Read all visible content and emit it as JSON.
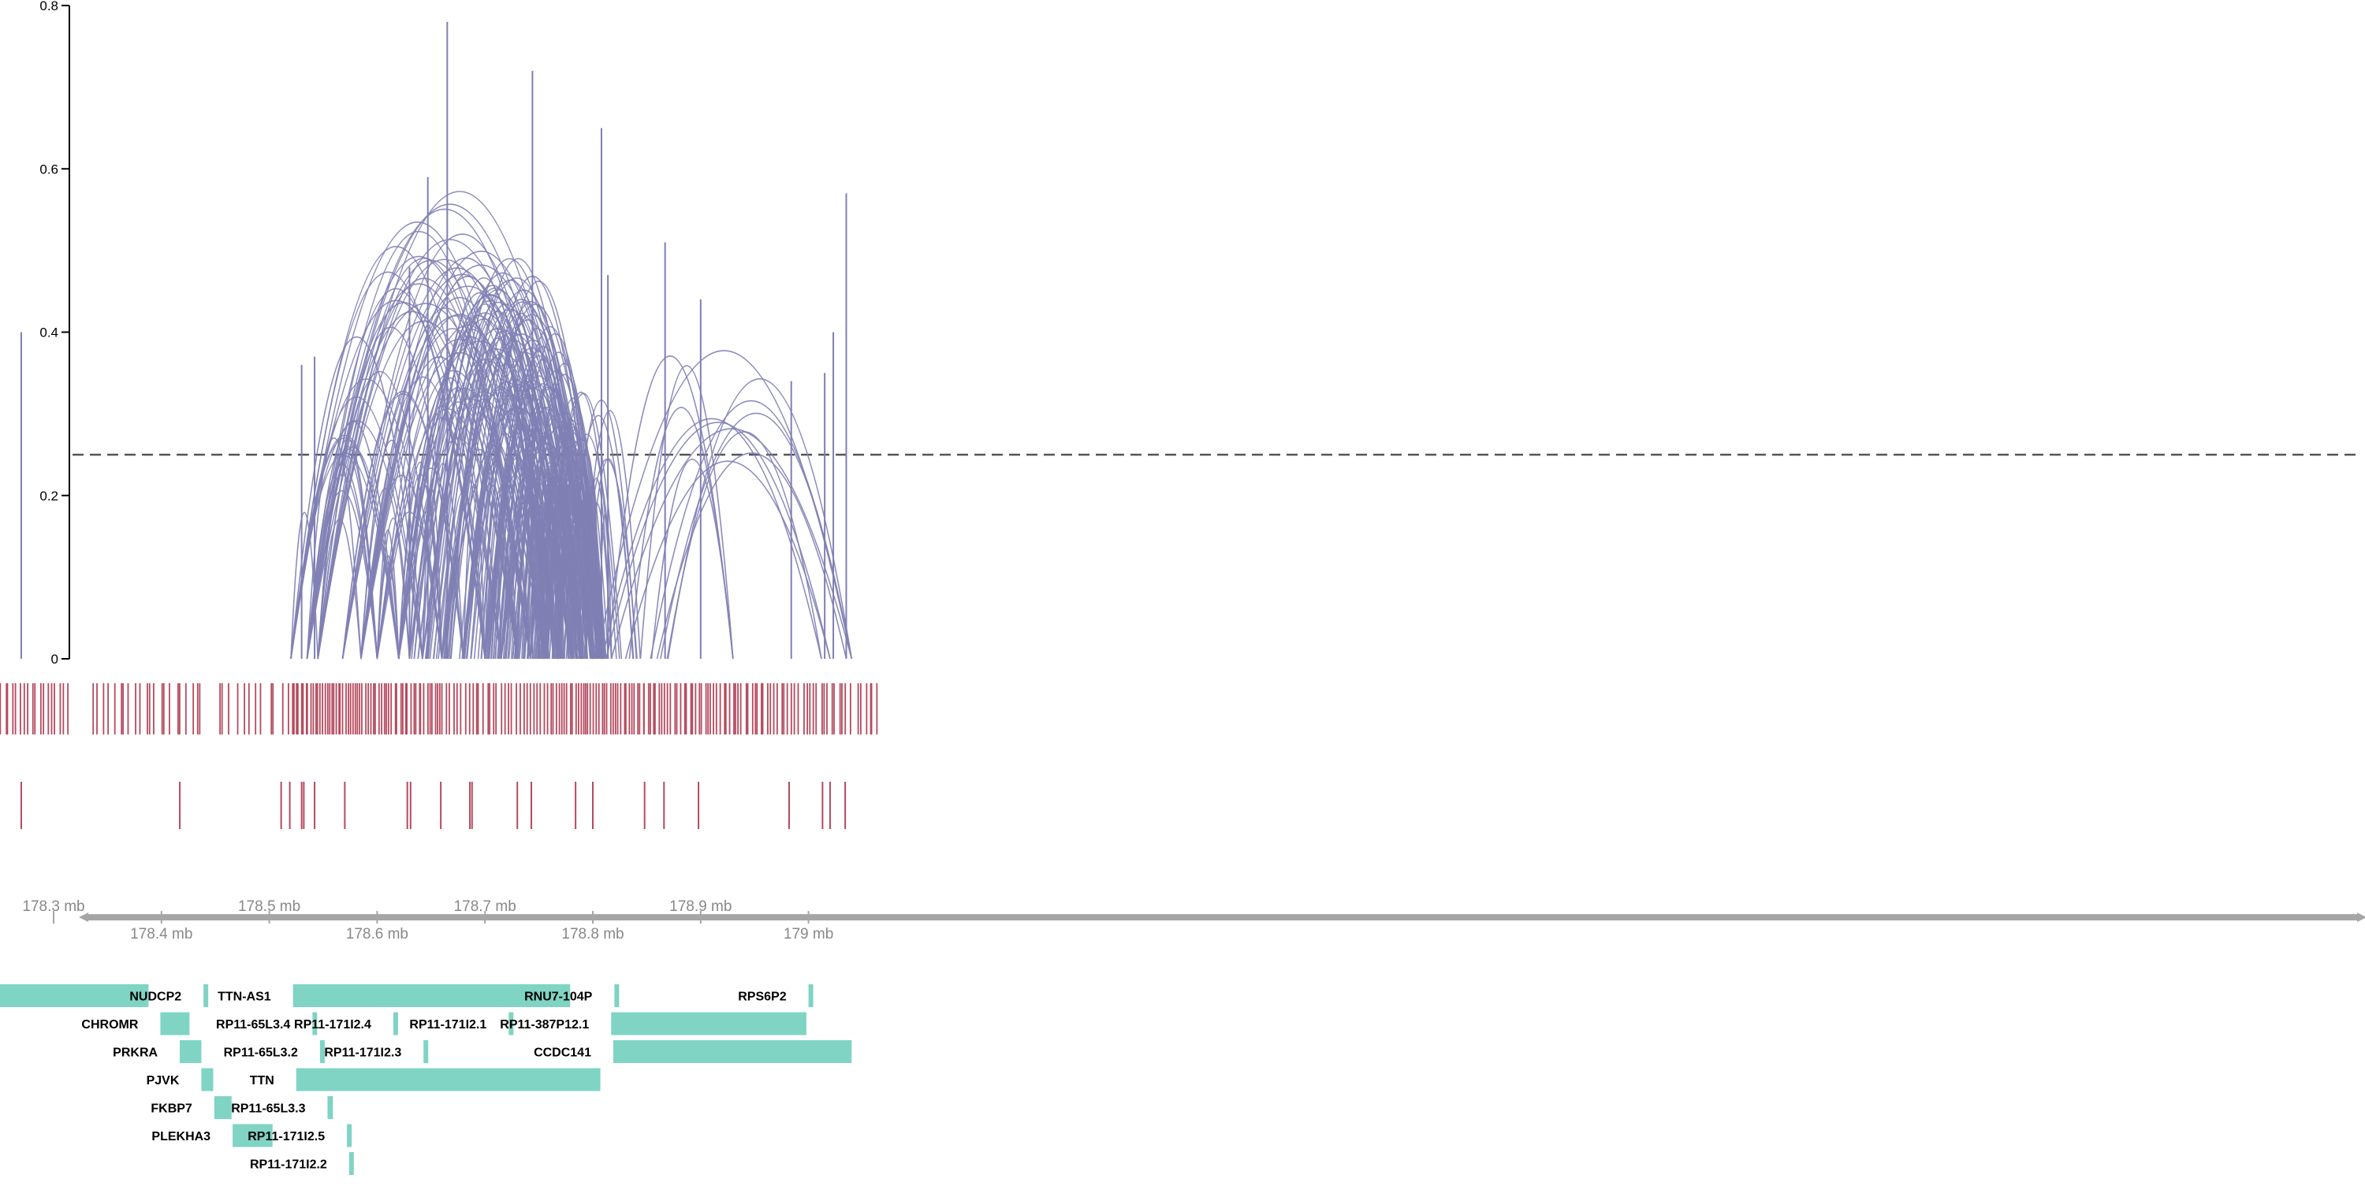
{
  "chart_data": {
    "type": "genome-track-arcs",
    "ylim": [
      0,
      0.8
    ],
    "yticks": [
      {
        "value": 0,
        "label": "0"
      },
      {
        "value": 0.2,
        "label": "0.2"
      },
      {
        "value": 0.4,
        "label": "0.4"
      },
      {
        "value": 0.6,
        "label": "0.6"
      },
      {
        "value": 0.8,
        "label": "0.8"
      }
    ],
    "threshold": 0.25,
    "xlim_mb": [
      178.23,
      179.07
    ],
    "colors": {
      "arcs": "#7f7fb4",
      "variants": "#b54a5e",
      "genes": "#7fd4c4",
      "axis": "#a6a6a6",
      "axis_text": "#888888",
      "threshold": "#555555"
    },
    "axis_ticks_upper": [
      "178.3 mb",
      "178.5 mb",
      "178.7 mb",
      "178.9 mb"
    ],
    "axis_ticks_lower": [
      "178.4 mb",
      "178.6 mb",
      "178.8 mb",
      "179 mb"
    ],
    "axis_tick_values_upper": [
      178.3,
      178.5,
      178.7,
      178.9
    ],
    "axis_tick_values_lower": [
      178.4,
      178.6,
      178.8,
      179.0
    ],
    "spikes": [
      {
        "x": 178.27,
        "h": 0.4
      },
      {
        "x": 178.53,
        "h": 0.36
      },
      {
        "x": 178.542,
        "h": 0.37
      },
      {
        "x": 178.63,
        "h": 0.48
      },
      {
        "x": 178.647,
        "h": 0.59
      },
      {
        "x": 178.665,
        "h": 0.78
      },
      {
        "x": 178.744,
        "h": 0.72
      },
      {
        "x": 178.808,
        "h": 0.65
      },
      {
        "x": 178.814,
        "h": 0.47
      },
      {
        "x": 178.867,
        "h": 0.51
      },
      {
        "x": 178.9,
        "h": 0.44
      },
      {
        "x": 178.984,
        "h": 0.34
      },
      {
        "x": 179.015,
        "h": 0.35
      },
      {
        "x": 179.023,
        "h": 0.4
      },
      {
        "x": 179.035,
        "h": 0.57
      }
    ],
    "variant_density": [
      {
        "from": 178.235,
        "to": 178.315,
        "n": 22
      },
      {
        "from": 178.335,
        "to": 178.44,
        "n": 22
      },
      {
        "from": 178.45,
        "to": 178.52,
        "n": 12
      },
      {
        "from": 178.52,
        "to": 178.585,
        "n": 30
      },
      {
        "from": 178.585,
        "to": 178.66,
        "n": 30
      },
      {
        "from": 178.66,
        "to": 178.76,
        "n": 30
      },
      {
        "from": 178.76,
        "to": 178.86,
        "n": 40
      },
      {
        "from": 178.86,
        "to": 178.96,
        "n": 35
      },
      {
        "from": 178.96,
        "to": 179.04,
        "n": 24
      },
      {
        "from": 179.045,
        "to": 179.065,
        "n": 6
      }
    ],
    "sparse_variants": [
      178.24,
      178.27,
      178.417,
      178.511,
      178.519,
      178.53,
      178.532,
      178.542,
      178.57,
      178.628,
      178.631,
      178.659,
      178.686,
      178.688,
      178.73,
      178.743,
      178.784,
      178.8,
      178.848,
      178.866,
      178.898,
      178.982,
      179.013,
      179.02,
      179.034
    ],
    "genes": [
      {
        "label": "",
        "start": 178.229,
        "end": 178.388,
        "row": 0,
        "label_side": "left"
      },
      {
        "label": "NUDCP2",
        "start": 178.439,
        "end": 178.441,
        "row": 0,
        "label_side": "left"
      },
      {
        "label": "TTN-AS1",
        "start": 178.522,
        "end": 178.779,
        "row": 0,
        "label_side": "left"
      },
      {
        "label": "RNU7-104P",
        "start": 178.82,
        "end": 178.821,
        "row": 0,
        "label_side": "left"
      },
      {
        "label": "RPS6P2",
        "start": 179.0,
        "end": 179.002,
        "row": 0,
        "label_side": "left"
      },
      {
        "label": "CHROMR",
        "start": 178.399,
        "end": 178.426,
        "row": 1,
        "label_side": "left"
      },
      {
        "label": "RP11-65L3.4",
        "start": 178.54,
        "end": 178.541,
        "row": 1,
        "label_side": "left"
      },
      {
        "label": "RP11-171I2.4",
        "start": 178.615,
        "end": 178.616,
        "row": 1,
        "label_side": "left"
      },
      {
        "label": "RP11-171I2.1",
        "start": 178.722,
        "end": 178.726,
        "row": 1,
        "label_side": "left"
      },
      {
        "label": "RP11-387P12.1",
        "start": 178.817,
        "end": 178.998,
        "row": 1,
        "label_side": "left"
      },
      {
        "label": "PRKRA",
        "start": 178.417,
        "end": 178.437,
        "row": 2,
        "label_side": "left"
      },
      {
        "label": "RP11-65L3.2",
        "start": 178.547,
        "end": 178.55,
        "row": 2,
        "label_side": "left"
      },
      {
        "label": "RP11-171I2.3",
        "start": 178.643,
        "end": 178.644,
        "row": 2,
        "label_side": "left"
      },
      {
        "label": "CCDC141",
        "start": 178.819,
        "end": 179.04,
        "row": 2,
        "label_side": "left"
      },
      {
        "label": "PJVK",
        "start": 178.437,
        "end": 178.448,
        "row": 3,
        "label_side": "left"
      },
      {
        "label": "TTN",
        "start": 178.525,
        "end": 178.807,
        "row": 3,
        "label_side": "left"
      },
      {
        "label": "FKBP7",
        "start": 178.449,
        "end": 178.465,
        "row": 4,
        "label_side": "left"
      },
      {
        "label": "RP11-65L3.3",
        "start": 178.554,
        "end": 178.559,
        "row": 4,
        "label_side": "left"
      },
      {
        "label": "PLEKHA3",
        "start": 178.466,
        "end": 178.503,
        "row": 5,
        "label_side": "left"
      },
      {
        "label": "RP11-171I2.5",
        "start": 178.572,
        "end": 178.573,
        "row": 5,
        "label_side": "left"
      },
      {
        "label": "RP11-171I2.2",
        "start": 178.574,
        "end": 178.577,
        "row": 6,
        "label_side": "left"
      }
    ]
  }
}
